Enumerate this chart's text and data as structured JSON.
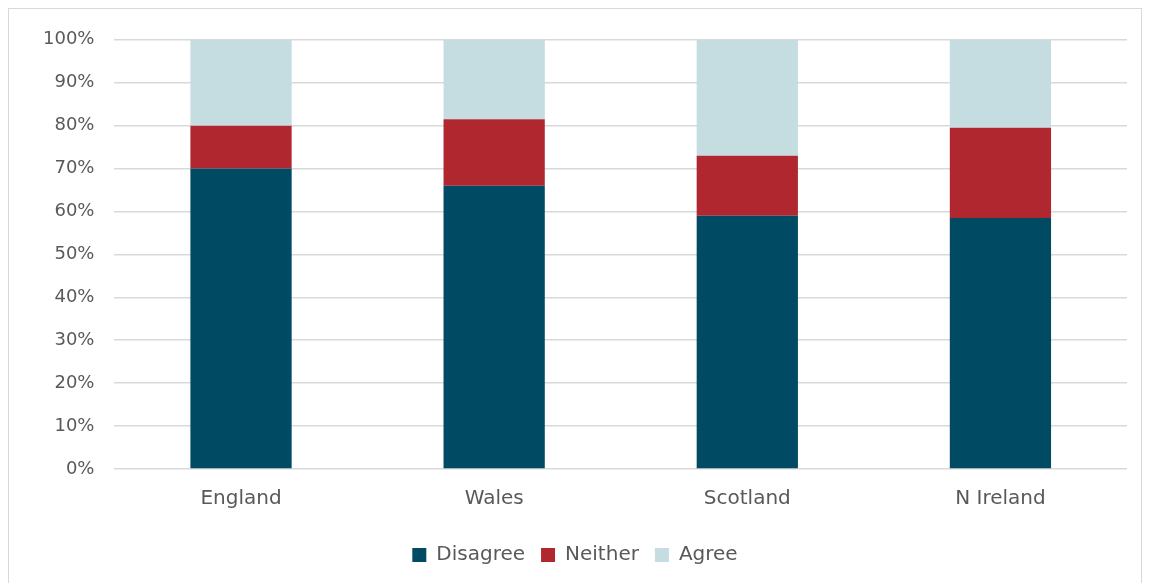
{
  "chart_data": {
    "type": "bar",
    "stacked": true,
    "categories": [
      "England",
      "Wales",
      "Scotland",
      "N Ireland"
    ],
    "series": [
      {
        "name": "Disagree",
        "color": "#004b63",
        "values": [
          70,
          66,
          59,
          58.5
        ]
      },
      {
        "name": "Neither",
        "color": "#b02730",
        "values": [
          10,
          15.5,
          14,
          21
        ]
      },
      {
        "name": "Agree",
        "color": "#c5dce0",
        "values": [
          20,
          18.5,
          27,
          20.5
        ]
      }
    ],
    "ylim": [
      0,
      100
    ],
    "yticks": [
      {
        "value": 0,
        "label": "0%"
      },
      {
        "value": 10,
        "label": "10%"
      },
      {
        "value": 20,
        "label": "20%"
      },
      {
        "value": 30,
        "label": "30%"
      },
      {
        "value": 40,
        "label": "40%"
      },
      {
        "value": 50,
        "label": "50%"
      },
      {
        "value": 60,
        "label": "60%"
      },
      {
        "value": 70,
        "label": "70%"
      },
      {
        "value": 80,
        "label": "80%"
      },
      {
        "value": 90,
        "label": "90%"
      },
      {
        "value": 100,
        "label": "100%"
      }
    ],
    "grid": "y",
    "legend": "bottom"
  }
}
